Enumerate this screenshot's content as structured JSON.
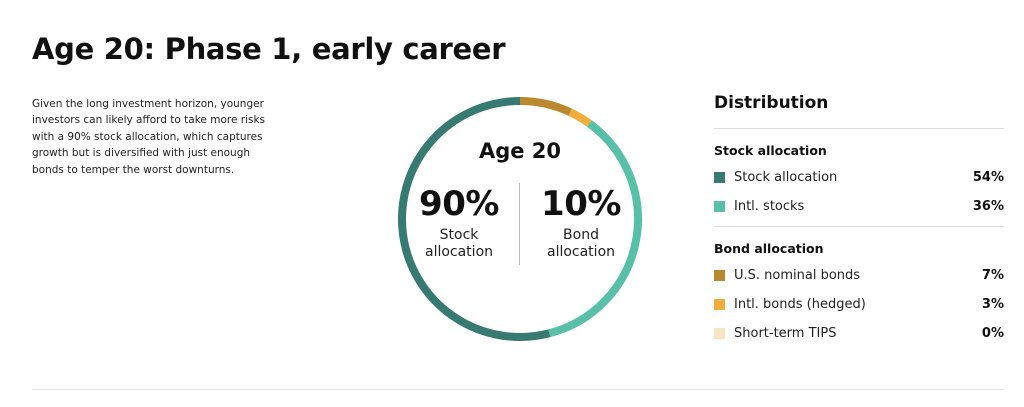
{
  "title": "Age 20: Phase 1, early career",
  "intro": "Given the long investment horizon, younger investors can likely afford to take more risks with a 90% stock allocation, which captures growth but is diversified with just enough bonds to temper the worst downturns.",
  "donut": {
    "center_title": "Age 20",
    "left_pct": "90%",
    "left_label_1": "Stock",
    "left_label_2": "allocation",
    "right_pct": "10%",
    "right_label_1": "Bond",
    "right_label_2": "allocation"
  },
  "distribution": {
    "title": "Distribution",
    "groups": [
      {
        "title": "Stock allocation",
        "items": [
          {
            "label": "Stock allocation",
            "value": "54%",
            "color": "#367a72"
          },
          {
            "label": "Intl. stocks",
            "value": "36%",
            "color": "#58c0a8"
          }
        ]
      },
      {
        "title": "Bond allocation",
        "items": [
          {
            "label": "U.S. nominal bonds",
            "value": "7%",
            "color": "#b8892e"
          },
          {
            "label": "Intl. bonds (hedged)",
            "value": "3%",
            "color": "#f2ae3d"
          },
          {
            "label": "Short-term TIPS",
            "value": "0%",
            "color": "#f9e5c2"
          }
        ]
      }
    ]
  },
  "chart_data": {
    "type": "pie",
    "categories": [
      "Stock allocation",
      "Intl. stocks",
      "U.S. nominal bonds",
      "Intl. bonds (hedged)",
      "Short-term TIPS"
    ],
    "values": [
      54,
      36,
      7,
      3,
      0
    ],
    "colors": [
      "#367a72",
      "#58c0a8",
      "#b8892e",
      "#f2ae3d",
      "#f9e5c2"
    ],
    "style": "donut"
  }
}
